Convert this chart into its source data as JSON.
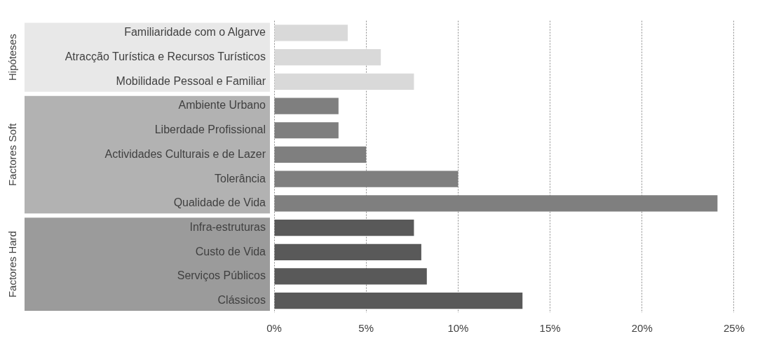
{
  "chart_data": {
    "type": "bar",
    "orientation": "horizontal",
    "categories": [
      "Familiaridade com o Algarve",
      "Atracção Turística e Recursos Turísticos",
      "Mobilidade Pessoal e Familiar",
      "Ambiente Urbano",
      "Liberdade Profissional",
      "Actividades Culturais e de Lazer",
      "Tolerância",
      "Qualidade de Vida",
      "Infra-estruturas",
      "Custo de Vida",
      "Serviços Públicos",
      "Clássicos"
    ],
    "values": [
      4.0,
      5.8,
      7.6,
      3.5,
      3.5,
      5.0,
      10.0,
      24.1,
      7.6,
      8.0,
      8.3,
      13.5
    ],
    "colors": [
      "#d9d9d9",
      "#d9d9d9",
      "#d9d9d9",
      "#7f7f7f",
      "#7f7f7f",
      "#7f7f7f",
      "#7f7f7f",
      "#7f7f7f",
      "#595959",
      "#595959",
      "#595959",
      "#595959"
    ],
    "annotations": [
      "Hipóteses",
      "Factores Soft",
      "Factores Hard"
    ],
    "xlim": [
      0,
      25
    ],
    "xticks": [
      {
        "value": 0,
        "label": "0%"
      },
      {
        "value": 5,
        "label": "5%"
      },
      {
        "value": 10,
        "label": "10%"
      },
      {
        "value": 15,
        "label": "15%"
      },
      {
        "value": 20,
        "label": "20%"
      },
      {
        "value": 25,
        "label": "25%"
      }
    ],
    "grid": "x",
    "legend": false
  }
}
